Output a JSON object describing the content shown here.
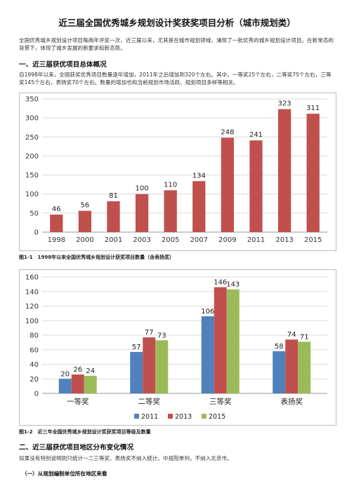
{
  "document": {
    "title": "近三届全国优秀城乡规划设计奖获奖项目分析（城市规划类）",
    "intro": "全国优秀城乡规划设计项目每两年评奖一次，近三届以来，尤其是在城市规划领域，涌现了一批优秀的城乡规划设计项目。在新常态的背景下，体现了城乡发展的新要求和新态势。",
    "section1_heading": "一、近三届获优项目总体概况",
    "section1_para": "自1998年以来，全国获奖优秀项目数量逐年增加，2011年之后增加到320个左右。其中，一等奖25个左右，二等奖75个左右，三等奖145个左右，表扬奖70个左右。数量的增加也和当前规划市场活跃、规划项目多样等相关。",
    "fig1_caption": "图1-1　1998年以来全国优秀城乡规划设计获奖项目数量（含表扬奖）",
    "fig2_caption": "图1-2　近三年全国优秀城乡规划设计奖获奖项目等级及数量",
    "section2_heading": "二、近三届获优项目地区分布变化情况",
    "section2_para": "如果没有特别说明则只统计一二三等奖、表扬奖不纳入统计。中规院单列，不纳入北京市。",
    "subsection_heading": "（一）从规划编制单位所在地区来看"
  },
  "colors": {
    "bar_red": "#c0504d",
    "bar_blue": "#4f81bd",
    "bar_green": "#9bbb59"
  },
  "chart_data": [
    {
      "type": "bar",
      "categories": [
        "1998",
        "2000",
        "2001",
        "2003",
        "2005",
        "2007",
        "2009",
        "2011",
        "2013",
        "2015"
      ],
      "values": [
        46,
        56,
        81,
        100,
        110,
        134,
        248,
        241,
        323,
        311
      ],
      "ylim": [
        0,
        350
      ],
      "yticks": [
        0,
        50,
        100,
        150,
        200,
        250,
        300,
        350
      ],
      "grid": true
    },
    {
      "type": "bar",
      "categories": [
        "一等奖",
        "二等奖",
        "三等奖",
        "表扬奖"
      ],
      "series": [
        {
          "name": "2011",
          "values": [
            20,
            57,
            106,
            58
          ]
        },
        {
          "name": "2013",
          "values": [
            26,
            77,
            146,
            74
          ]
        },
        {
          "name": "2015",
          "values": [
            24,
            73,
            143,
            71
          ]
        }
      ],
      "ylim": [
        0,
        160
      ],
      "yticks": [
        0,
        20,
        40,
        60,
        80,
        100,
        120,
        140,
        160
      ],
      "legend": "bottom",
      "grid": true
    }
  ]
}
